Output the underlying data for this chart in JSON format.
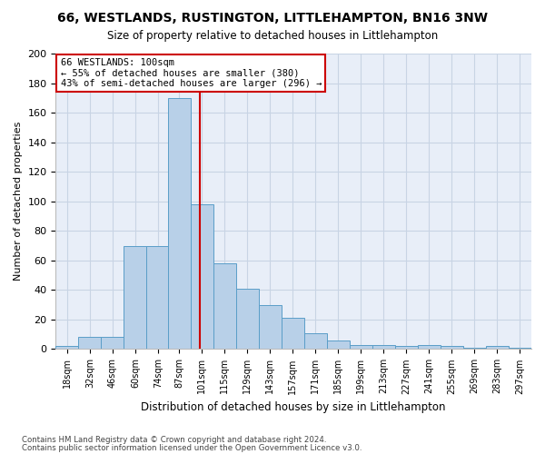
{
  "title": "66, WESTLANDS, RUSTINGTON, LITTLEHAMPTON, BN16 3NW",
  "subtitle": "Size of property relative to detached houses in Littlehampton",
  "xlabel": "Distribution of detached houses by size in Littlehampton",
  "ylabel": "Number of detached properties",
  "categories": [
    "18sqm",
    "32sqm",
    "46sqm",
    "60sqm",
    "74sqm",
    "87sqm",
    "101sqm",
    "115sqm",
    "129sqm",
    "143sqm",
    "157sqm",
    "171sqm",
    "185sqm",
    "199sqm",
    "213sqm",
    "227sqm",
    "241sqm",
    "255sqm",
    "269sqm",
    "283sqm",
    "297sqm"
  ],
  "counts": [
    2,
    8,
    8,
    70,
    70,
    170,
    98,
    58,
    41,
    30,
    21,
    11,
    6,
    3,
    3,
    2,
    3,
    2,
    1,
    2,
    1
  ],
  "property_sqm": 100,
  "property_label": "66 WESTLANDS: 100sqm",
  "annotation_line1": "← 55% of detached houses are smaller (380)",
  "annotation_line2": "43% of semi-detached houses are larger (296) →",
  "bar_color": "#b8d0e8",
  "bar_edge_color": "#5a9ec8",
  "line_color": "#cc0000",
  "annotation_box_color": "#ffffff",
  "annotation_box_edge": "#cc0000",
  "grid_color": "#c8d4e4",
  "background_color": "#e8eef8",
  "footer_line1": "Contains HM Land Registry data © Crown copyright and database right 2024.",
  "footer_line2": "Contains public sector information licensed under the Open Government Licence v3.0.",
  "ylim": [
    0,
    200
  ],
  "yticks": [
    0,
    20,
    40,
    60,
    80,
    100,
    120,
    140,
    160,
    180,
    200
  ]
}
